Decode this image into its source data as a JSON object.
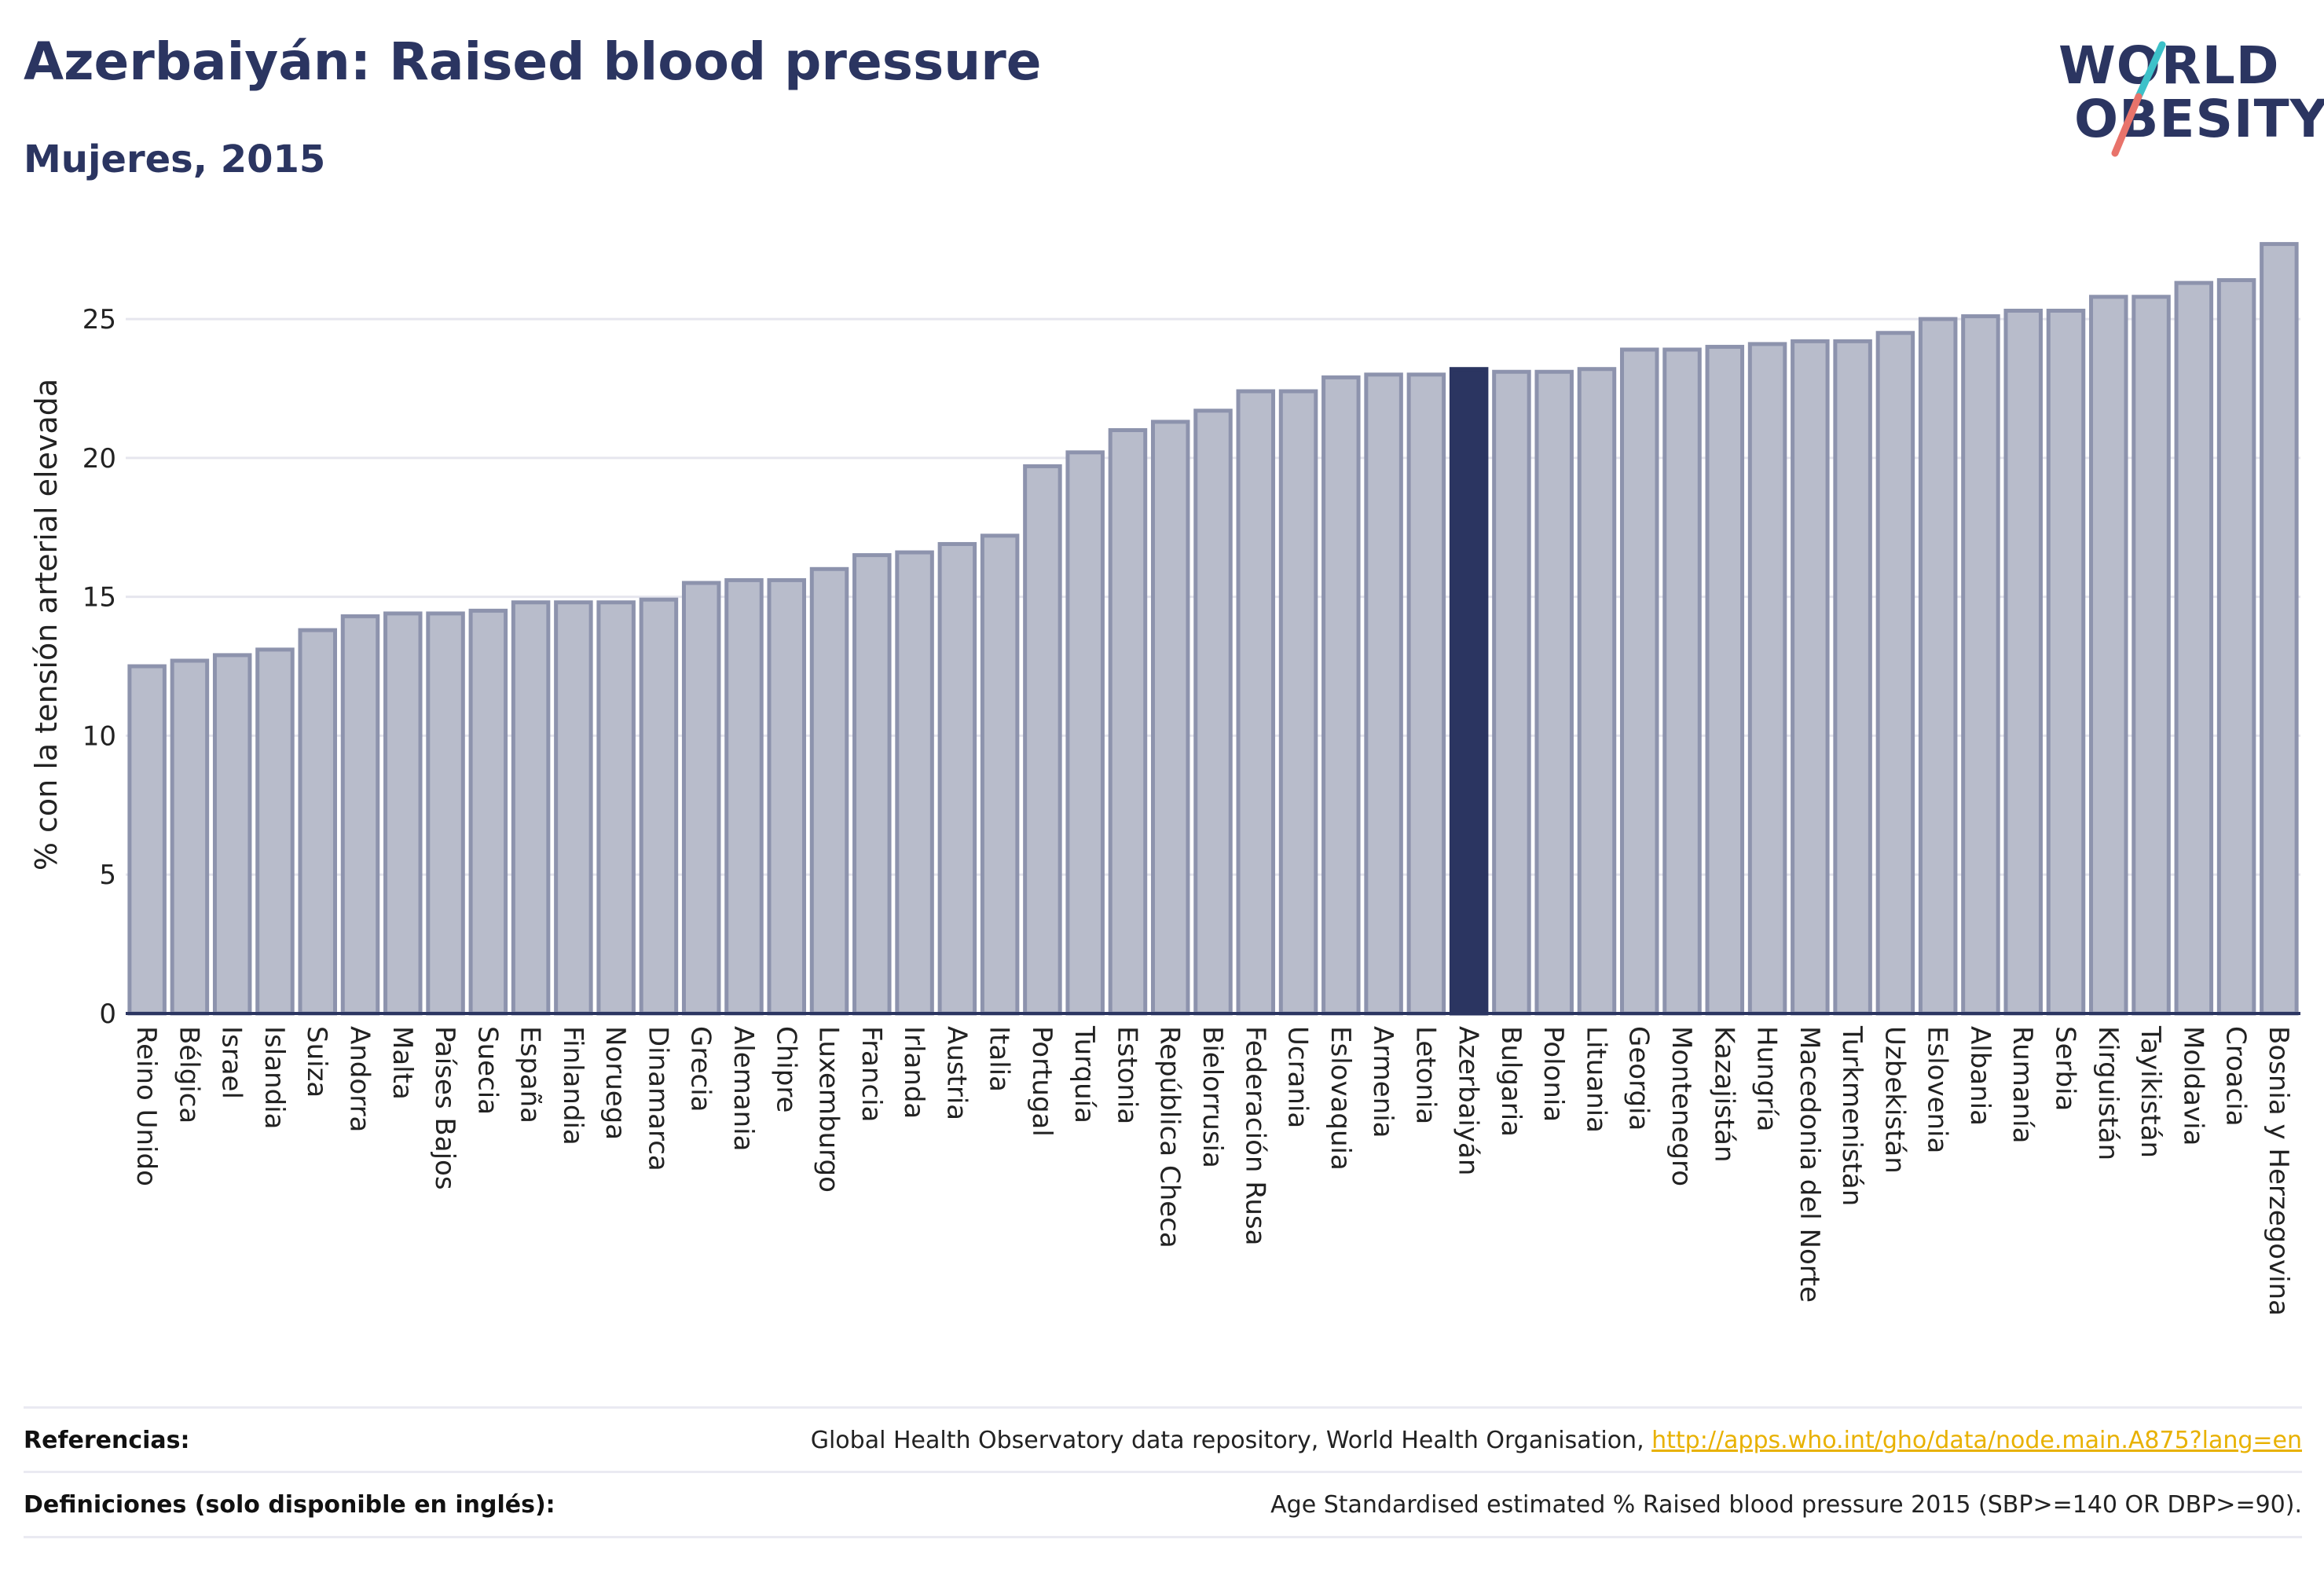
{
  "header": {
    "title": "Azerbaiyán: Raised blood pressure",
    "subtitle": "Mujeres, 2015"
  },
  "logo": {
    "line1": "WORLD",
    "line2": "OBESITY",
    "accent_colors": [
      "#3dc1c9",
      "#e8736b"
    ]
  },
  "colors": {
    "bar_fill": "#b8bccb",
    "bar_stroke": "#8d93ad",
    "highlight_fill": "#2b3561",
    "axis": "#2b3561",
    "grid": "#e6e6ee"
  },
  "chart_data": {
    "type": "bar",
    "ylabel": "% con la tensión arterial elevada",
    "ylim": [
      0,
      28
    ],
    "yticks": [
      0,
      5,
      10,
      15,
      20,
      25
    ],
    "highlight": "Azerbaiyán",
    "categories": [
      "Reino Unido",
      "Bélgica",
      "Israel",
      "Islandia",
      "Suiza",
      "Andorra",
      "Malta",
      "Países Bajos",
      "Suecia",
      "España",
      "Finlandia",
      "Noruega",
      "Dinamarca",
      "Grecia",
      "Alemania",
      "Chipre",
      "Luxemburgo",
      "Francia",
      "Irlanda",
      "Austria",
      "Italia",
      "Portugal",
      "Turquía",
      "Estonia",
      "República Checa",
      "Bielorrusia",
      "Federación Rusa",
      "Ucrania",
      "Eslovaquia",
      "Armenia",
      "Letonia",
      "Azerbaiyán",
      "Bulgaria",
      "Polonia",
      "Lituania",
      "Georgia",
      "Montenegro",
      "Kazajistán",
      "Hungría",
      "Macedonia del Norte",
      "Turkmenistán",
      "Uzbekistán",
      "Eslovenia",
      "Albania",
      "Rumanía",
      "Serbia",
      "Kirguistán",
      "Tayikistán",
      "Moldavia",
      "Croacia",
      "Bosnia y Herzegovina"
    ],
    "values": [
      12.5,
      12.7,
      12.9,
      13.1,
      13.8,
      14.3,
      14.4,
      14.4,
      14.5,
      14.8,
      14.8,
      14.8,
      14.9,
      15.5,
      15.6,
      15.6,
      16.0,
      16.5,
      16.6,
      16.9,
      17.2,
      19.7,
      20.2,
      21.0,
      21.3,
      21.7,
      22.4,
      22.4,
      22.9,
      23.0,
      23.0,
      23.2,
      23.1,
      23.1,
      23.2,
      23.9,
      23.9,
      24.0,
      24.1,
      24.2,
      24.2,
      24.5,
      25.0,
      25.1,
      25.3,
      25.3,
      25.8,
      25.8,
      26.3,
      26.4,
      27.7
    ]
  },
  "footer": {
    "references_label": "Referencias:",
    "references_text": "Global Health Observatory data repository, World Health Organisation, ",
    "references_link": "http://apps.who.int/gho/data/node.main.A875?lang=en",
    "definitions_label": "Definiciones (solo disponible en inglés):",
    "definitions_text": "Age Standardised estimated % Raised blood pressure 2015 (SBP>=140 OR DBP>=90)."
  }
}
